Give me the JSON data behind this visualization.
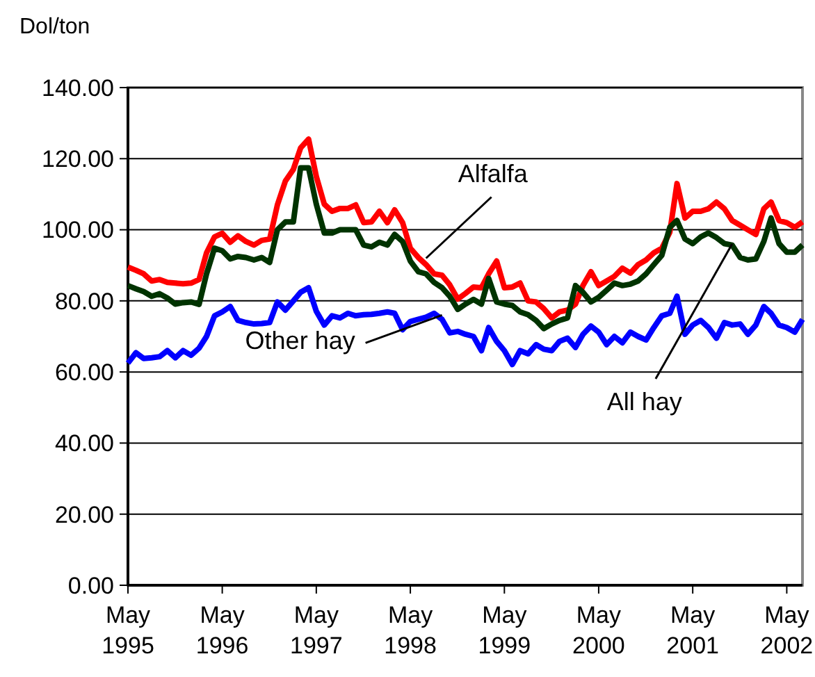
{
  "chart_data": {
    "type": "line",
    "ylabel": "Dol/ton",
    "x": [
      "1995-05",
      "1995-06",
      "1995-07",
      "1995-08",
      "1995-09",
      "1995-10",
      "1995-11",
      "1995-12",
      "1996-01",
      "1996-02",
      "1996-03",
      "1996-04",
      "1996-05",
      "1996-06",
      "1996-07",
      "1996-08",
      "1996-09",
      "1996-10",
      "1996-11",
      "1996-12",
      "1997-01",
      "1997-02",
      "1997-03",
      "1997-04",
      "1997-05",
      "1997-06",
      "1997-07",
      "1997-08",
      "1997-09",
      "1997-10",
      "1997-11",
      "1997-12",
      "1998-01",
      "1998-02",
      "1998-03",
      "1998-04",
      "1998-05",
      "1998-06",
      "1998-07",
      "1998-08",
      "1998-09",
      "1998-10",
      "1998-11",
      "1998-12",
      "1999-01",
      "1999-02",
      "1999-03",
      "1999-04",
      "1999-05",
      "1999-06",
      "1999-07",
      "1999-08",
      "1999-09",
      "1999-10",
      "1999-11",
      "1999-12",
      "2000-01",
      "2000-02",
      "2000-03",
      "2000-04",
      "2000-05",
      "2000-06",
      "2000-07",
      "2000-08",
      "2000-09",
      "2000-10",
      "2000-11",
      "2000-12",
      "2001-01",
      "2001-02",
      "2001-03",
      "2001-04",
      "2001-05",
      "2001-06",
      "2001-07",
      "2001-08",
      "2001-09",
      "2001-10",
      "2001-11",
      "2001-12",
      "2002-01",
      "2002-02",
      "2002-03",
      "2002-04",
      "2002-05",
      "2002-06",
      "2002-07"
    ],
    "series": [
      {
        "color": "#ff0000",
        "values": [
          89.5,
          88.6,
          87.6,
          85.6,
          86,
          85.2,
          85,
          84.8,
          85,
          86,
          93.5,
          98,
          99,
          96.5,
          98.3,
          96.7,
          95.7,
          97,
          97.4,
          107,
          113.7,
          117,
          123,
          125.5,
          115,
          107.2,
          105.2,
          106,
          106,
          107,
          102,
          102.2,
          105.2,
          102,
          105.6,
          102,
          94.8,
          92.2,
          90.2,
          87.6,
          87.2,
          84.5,
          80.5,
          82.1,
          83.9,
          83.7,
          87.6,
          91.2,
          83.7,
          83.9,
          85,
          80,
          79.7,
          77.8,
          75.2,
          76.9,
          77.4,
          79.1,
          84.3,
          88.2,
          84.3,
          85.6,
          86.9,
          89.2,
          87.8,
          90.2,
          91.5,
          93.5,
          94.8,
          99.3,
          113,
          103.3,
          105.2,
          105.2,
          105.9,
          107.8,
          105.9,
          102.6,
          101.3,
          100,
          98.7,
          105.9,
          107.8,
          102.6,
          102,
          100.7,
          102.2
        ]
      },
      {
        "color": "#003300",
        "values": [
          84.3,
          83.4,
          82.6,
          81.3,
          82,
          80.8,
          79.1,
          79.5,
          79.7,
          79,
          87.6,
          94.8,
          94.1,
          91.8,
          92.5,
          92.2,
          91.5,
          92.2,
          90.8,
          100,
          102.2,
          102.2,
          117.4,
          117.4,
          107.2,
          99.1,
          99.1,
          100,
          100,
          100,
          95.7,
          95.2,
          96.5,
          95.7,
          98.7,
          96.7,
          91.2,
          88.2,
          87.6,
          85.2,
          83.7,
          81.3,
          77.6,
          79.1,
          80.4,
          79.1,
          86.3,
          79.7,
          79.1,
          78.7,
          76.9,
          76.1,
          74.5,
          72.2,
          73.5,
          74.5,
          75.2,
          84.3,
          82.4,
          79.7,
          81,
          83,
          85,
          84.3,
          84.7,
          85.6,
          87.6,
          90.2,
          92.8,
          100.7,
          102.6,
          97.4,
          96.1,
          98,
          99.1,
          97.8,
          96.1,
          95.7,
          92.2,
          91.5,
          91.8,
          96.7,
          103.3,
          96.1,
          93.7,
          93.7,
          95.7
        ]
      },
      {
        "color": "#0000ff",
        "values": [
          62.5,
          65.4,
          63.8,
          64,
          64.3,
          66,
          64,
          66,
          64.7,
          66.7,
          70,
          75.8,
          76.9,
          78.4,
          74.5,
          73.9,
          73.5,
          73.6,
          73.9,
          79.7,
          77.4,
          80,
          82.4,
          83.7,
          77.1,
          73.2,
          75.8,
          75.2,
          76.5,
          75.8,
          76.1,
          76.2,
          76.5,
          76.9,
          76.5,
          71.9,
          74.2,
          74.8,
          75.4,
          76.5,
          74.8,
          71,
          71.4,
          70.6,
          70,
          66,
          72.5,
          68.6,
          66,
          62.1,
          66,
          65.1,
          67.7,
          66.4,
          66,
          68.6,
          69.5,
          66.9,
          70.6,
          72.9,
          71.2,
          67.7,
          70,
          68.2,
          71.2,
          70,
          69,
          72.5,
          75.8,
          76.5,
          81.3,
          70.6,
          73.2,
          74.5,
          72.5,
          69.5,
          73.9,
          73.2,
          73.5,
          70.6,
          73.2,
          78.4,
          76.5,
          73.2,
          72.5,
          71.2,
          74.8
        ]
      }
    ],
    "xlim": [
      "1995-05",
      "2002-07"
    ],
    "xticks": [
      {
        "value": "1995-05",
        "label": "May 1995"
      },
      {
        "value": "1996-05",
        "label": "May 1996"
      },
      {
        "value": "1997-05",
        "label": "May 1997"
      },
      {
        "value": "1998-05",
        "label": "May 1998"
      },
      {
        "value": "1999-05",
        "label": "May 1999"
      },
      {
        "value": "2000-05",
        "label": "May 2000"
      },
      {
        "value": "2001-05",
        "label": "May 2001"
      },
      {
        "value": "2002-05",
        "label": "May 2002"
      }
    ],
    "ylim": [
      0,
      140
    ],
    "yticks": [
      {
        "value": 0,
        "label": "0.00"
      },
      {
        "value": 20,
        "label": "20.00"
      },
      {
        "value": 40,
        "label": "40.00"
      },
      {
        "value": 60,
        "label": "60.00"
      },
      {
        "value": 80,
        "label": "80.00"
      },
      {
        "value": 100,
        "label": "100.00"
      },
      {
        "value": 120,
        "label": "120.00"
      },
      {
        "value": 140,
        "label": "140.00"
      }
    ],
    "grid": "y",
    "marker": "none",
    "line_style": "solid",
    "annotations": [
      {
        "text": "Alfalfa",
        "x": "1998-07",
        "y": 92
      },
      {
        "text": "Other hay",
        "x": "1998-09",
        "y": 76
      },
      {
        "text": "All hay",
        "x": "2001-10",
        "y": 96
      }
    ]
  }
}
